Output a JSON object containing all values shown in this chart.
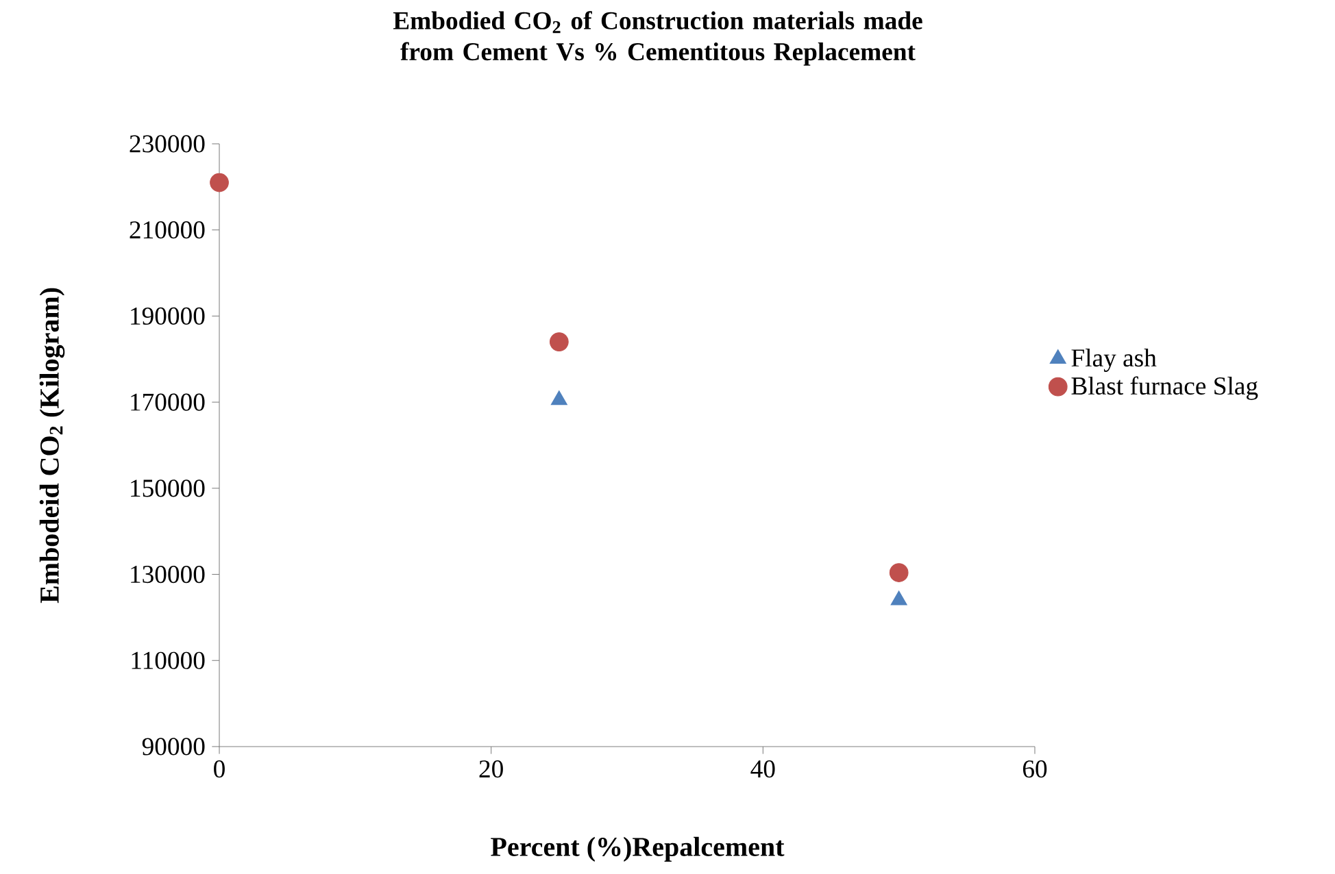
{
  "chart_data": {
    "type": "scatter",
    "title": "Embodied CO$_{2}$ of Construction materials made from Cement Vs % Cementitous Replacement",
    "xlabel": "Percent (%)Repalcement",
    "ylabel": "Embodeid CO$_{2}$ (Kilogram)",
    "x": [
      0,
      25,
      50
    ],
    "series": [
      {
        "name": "Flay ash",
        "color": "#4f81bd",
        "marker": "triangle",
        "values": [
          null,
          170500,
          124000
        ]
      },
      {
        "name": "Blast furnace Slag",
        "color": "#c0504d",
        "marker": "circle",
        "values": [
          221000,
          184000,
          130400
        ]
      }
    ],
    "xlim": [
      0,
      60
    ],
    "xticks": [
      0,
      20,
      40,
      60
    ],
    "ylim": [
      90000,
      230000
    ],
    "yticks": [
      90000,
      110000,
      130000,
      150000,
      170000,
      190000,
      210000,
      230000
    ],
    "grid": false,
    "legend": "right"
  }
}
